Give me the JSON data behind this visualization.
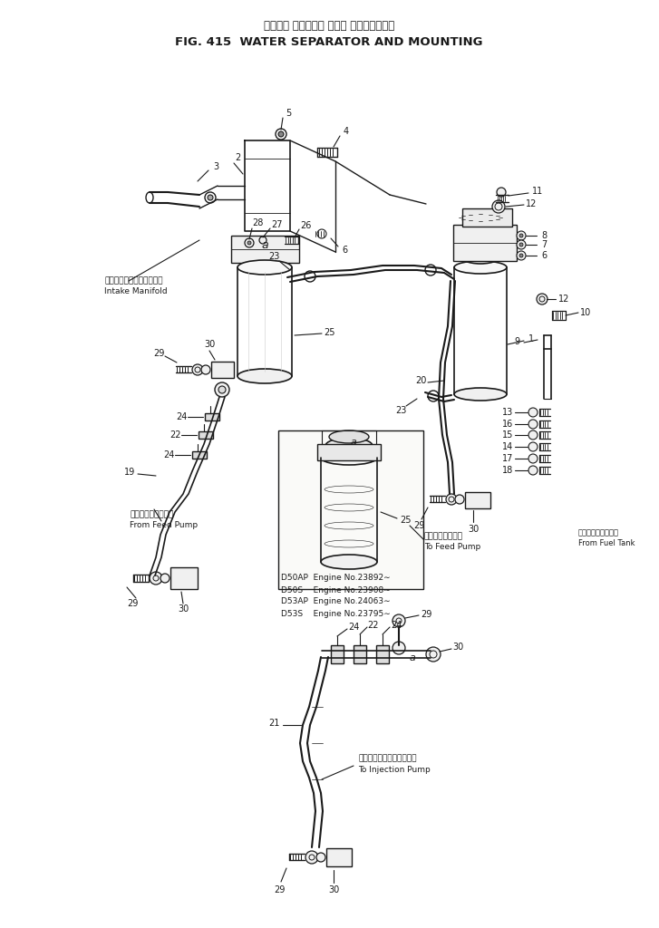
{
  "title_jp": "ウォータ セパレータ および マウンティング",
  "title_en": "FIG. 415  WATER SEPARATOR AND MOUNTING",
  "bg_color": "#ffffff",
  "line_color": "#1a1a1a",
  "text_color": "#1a1a1a",
  "fig_width": 7.27,
  "fig_height": 10.24,
  "dpi": 100,
  "labels": {
    "intake_manifold_jp": "インテークマニホールド：",
    "intake_manifold_en": "Intake Manifold",
    "from_feed_pump_jp": "フィードポンプから",
    "from_feed_pump_en": "From Feed Pump",
    "to_feed_pump_jp": "フィードポンプへ",
    "to_feed_pump_en": "To Feed Pump",
    "to_injection_jp": "インジェクションポンプへ",
    "to_injection_en": "To Injection Pump",
    "from_fuel_tank_jp": "フェエルタンクから",
    "from_fuel_tank_en": "From Fuel Tank",
    "d50ap": "D50AP  Engine No.23892∼",
    "d50s": "D50S    Engine No.23908∼",
    "d53ap": "D53AP  Engine No.24063∼",
    "d53s": "D53S    Engine No.23795∼"
  }
}
